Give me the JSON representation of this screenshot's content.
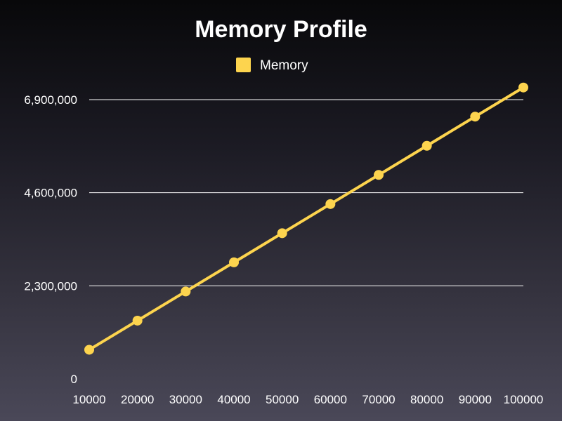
{
  "chart_data": {
    "type": "line",
    "title": "Memory Profile",
    "xlabel": "",
    "ylabel": "",
    "categories": [
      "10000",
      "20000",
      "30000",
      "40000",
      "50000",
      "60000",
      "70000",
      "80000",
      "90000",
      "100000"
    ],
    "series": [
      {
        "name": "Memory",
        "color": "#fdd44e",
        "values": [
          720000,
          1440000,
          2160000,
          2880000,
          3600000,
          4320000,
          5040000,
          5760000,
          6480000,
          7200000
        ]
      }
    ],
    "ylim": [
      0,
      6900000
    ],
    "yticks": [
      0,
      2300000,
      4600000,
      6900000
    ],
    "ytick_labels": [
      "0",
      "2,300,000",
      "4,600,000",
      "6,900,000"
    ],
    "grid": true,
    "legend": "top-center"
  },
  "colors": {
    "text": "#ffffff",
    "grid": "#ffffff"
  }
}
